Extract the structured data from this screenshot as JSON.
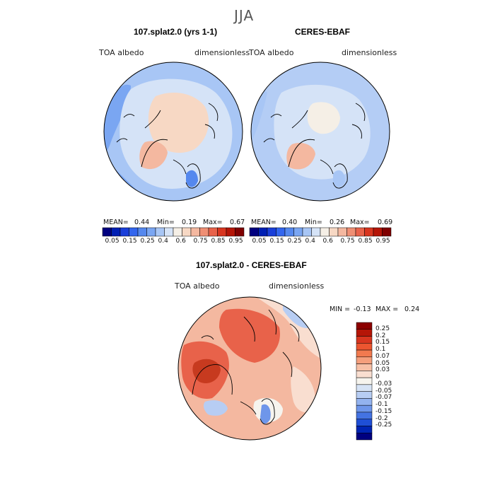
{
  "season": "JJA",
  "panels": [
    {
      "title": "107.splat2.0 (yrs 1-1)",
      "variable": "TOA albedo",
      "units": "dimensionless",
      "stats": {
        "mean_label": "MEAN=",
        "mean": "0.44",
        "min_label": "Min=",
        "min": "0.19",
        "max_label": "Max=",
        "max": "0.67"
      }
    },
    {
      "title": "CERES-EBAF",
      "variable": "TOA albedo",
      "units": "dimensionless",
      "stats": {
        "mean_label": "MEAN=",
        "mean": "0.40",
        "min_label": "Min=",
        "min": "0.26",
        "max_label": "Max=",
        "max": "0.69"
      }
    }
  ],
  "abs_colorbar": {
    "colors": [
      "#00007f",
      "#001fb3",
      "#1a3fd9",
      "#3366ee",
      "#5588ee",
      "#7aa6f2",
      "#a8c6f5",
      "#d5e3f7",
      "#f5efe6",
      "#f7d8c4",
      "#f4b8a0",
      "#ef8f74",
      "#e8624a",
      "#d8351f",
      "#b51507",
      "#7f0000"
    ],
    "labels": [
      "0.05",
      "0.15",
      "0.25",
      "0.4",
      "0.6",
      "0.75",
      "0.85",
      "0.95"
    ]
  },
  "diff": {
    "title": "107.splat2.0 - CERES-EBAF",
    "variable": "TOA albedo",
    "units": "dimensionless",
    "stats": {
      "min_label": "MIN =",
      "min": "-0.13",
      "max_label": "MAX =",
      "max": "0.24"
    },
    "colorbar": {
      "colors": [
        "#8c0000",
        "#b51507",
        "#d8351f",
        "#ec5530",
        "#f27a4f",
        "#f59f7c",
        "#f7c0a6",
        "#f9ded0",
        "#f6f4ee",
        "#d6e3f5",
        "#b7cdf3",
        "#93b3ef",
        "#6e96ea",
        "#4473e2",
        "#1f4fd6",
        "#0024b3",
        "#000080"
      ],
      "labels": [
        "0.25",
        "0.2",
        "0.15",
        "0.1",
        "0.07",
        "0.05",
        "0.03",
        "0",
        "-0.03",
        "-0.05",
        "-0.07",
        "-0.1",
        "-0.15",
        "-0.2",
        "-0.25"
      ]
    }
  },
  "map_colors": {
    "ocean_model": "#a8c6f5",
    "ocean_obs": "#b4cdf5",
    "low": "#7aa6f2",
    "mid": "#d5e3f7",
    "high": "#f7d8c4",
    "higher": "#f4b8a0",
    "diff_base": "#f4b8a0",
    "diff_strong": "#e8624a",
    "diff_vstrong": "#c73a1f",
    "diff_neutral": "#f9ded0",
    "diff_neg": "#b7cdf3",
    "diff_negstrong": "#6e96ea"
  }
}
